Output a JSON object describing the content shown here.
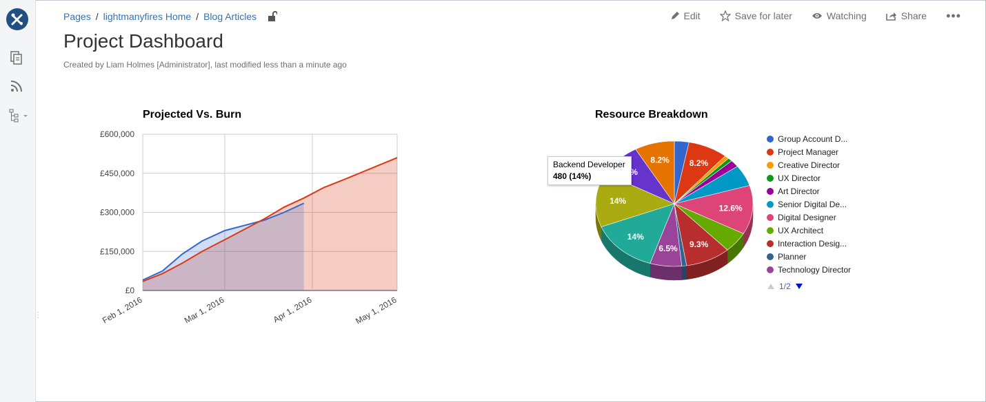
{
  "breadcrumb": [
    {
      "label": "Pages"
    },
    {
      "label": "lightmanyfires Home"
    },
    {
      "label": "Blog Articles"
    }
  ],
  "breadcrumb_separator": "/",
  "actions": {
    "edit": "Edit",
    "save_for_later": "Save for later",
    "watching": "Watching",
    "share": "Share",
    "more": "•••"
  },
  "page": {
    "title": "Project Dashboard",
    "byline": "Created by Liam Holmes [Administrator], last modified less than a minute ago"
  },
  "tooltip": {
    "line1": "Backend Developer",
    "line2": "480 (14%)"
  },
  "legend_pager": "1/2",
  "colors": {
    "brand": "#205081",
    "link": "#3572b0",
    "projected": "#dc3912",
    "burn": "#3366cc"
  },
  "chart_data": [
    {
      "type": "area",
      "title": "Projected Vs. Burn",
      "x": [
        "2016-02-01",
        "2016-02-08",
        "2016-02-15",
        "2016-02-22",
        "2016-03-01",
        "2016-03-08",
        "2016-03-15",
        "2016-03-22",
        "2016-03-29",
        "2016-04-05",
        "2016-04-12",
        "2016-05-01"
      ],
      "x_tick_labels": [
        "Feb 1, 2016",
        "Mar 1, 2016",
        "Apr 1, 2016",
        "May 1, 2016"
      ],
      "y_tick_labels": [
        "£0",
        "£150,000",
        "£300,000",
        "£450,000",
        "£600,000"
      ],
      "ylim": [
        0,
        600000
      ],
      "grid": true,
      "series": [
        {
          "name": "",
          "color": "#3366cc",
          "values": [
            40000,
            75000,
            140000,
            190000,
            230000,
            250000,
            270000,
            300000,
            335000,
            null,
            null,
            null
          ]
        },
        {
          "name": "",
          "color": "#dc3912",
          "values": [
            35000,
            65000,
            105000,
            150000,
            195000,
            235000,
            275000,
            320000,
            355000,
            395000,
            425000,
            510000
          ]
        }
      ]
    },
    {
      "type": "pie",
      "title": "Resource Breakdown",
      "legend_position": "right",
      "slices": [
        {
          "label": "Group Account D...",
          "percent": 3.0,
          "color": "#3366cc",
          "text": ""
        },
        {
          "label": "Project Manager",
          "percent": 8.2,
          "color": "#dc3912",
          "text": "8.2%"
        },
        {
          "label": "Creative Director",
          "percent": 0.9,
          "color": "#ff9900",
          "text": ""
        },
        {
          "label": "UX Director",
          "percent": 0.9,
          "color": "#109618",
          "text": ""
        },
        {
          "label": "Art Director",
          "percent": 1.8,
          "color": "#990099",
          "text": ""
        },
        {
          "label": "Senior Digital De...",
          "percent": 5.5,
          "color": "#0099c6",
          "text": ""
        },
        {
          "label": "Digital Designer",
          "percent": 12.6,
          "color": "#dd4477",
          "text": "12.6%"
        },
        {
          "label": "UX Architect",
          "percent": 5.3,
          "color": "#66aa00",
          "text": ""
        },
        {
          "label": "Interaction Desig...",
          "percent": 9.3,
          "color": "#b82e2e",
          "text": "9.3%"
        },
        {
          "label": "Planner",
          "percent": 1.0,
          "color": "#316395",
          "text": ""
        },
        {
          "label": "Technology Director",
          "percent": 6.5,
          "color": "#994499",
          "text": "6.5%"
        },
        {
          "label": "",
          "percent": 14.0,
          "color": "#22aa99",
          "text": "14%"
        },
        {
          "label": "Backend Developer",
          "percent": 14.0,
          "color": "#aaaa11",
          "text": "14%"
        },
        {
          "label": "",
          "percent": 8.8,
          "color": "#6633cc",
          "text": "%"
        },
        {
          "label": "",
          "percent": 8.2,
          "color": "#e67300",
          "text": "8.2%"
        }
      ]
    }
  ]
}
